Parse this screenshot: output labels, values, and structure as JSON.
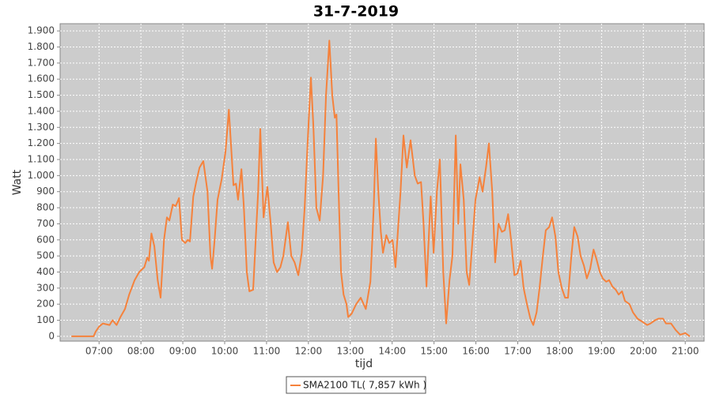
{
  "chart_data": {
    "type": "line",
    "title": "31-7-2019",
    "x_label": "tijd",
    "y_label": "Watt",
    "grid": true,
    "background": "#cccccc",
    "xlim": [
      6.07,
      21.45
    ],
    "ylim": [
      -30,
      1945
    ],
    "xticks": [
      {
        "value": 7,
        "label": "07:00"
      },
      {
        "value": 8,
        "label": "08:00"
      },
      {
        "value": 9,
        "label": "09:00"
      },
      {
        "value": 10,
        "label": "10:00"
      },
      {
        "value": 11,
        "label": "11:00"
      },
      {
        "value": 12,
        "label": "12:00"
      },
      {
        "value": 13,
        "label": "13:00"
      },
      {
        "value": 14,
        "label": "14:00"
      },
      {
        "value": 15,
        "label": "15:00"
      },
      {
        "value": 16,
        "label": "16:00"
      },
      {
        "value": 17,
        "label": "17:00"
      },
      {
        "value": 18,
        "label": "18:00"
      },
      {
        "value": 19,
        "label": "19:00"
      },
      {
        "value": 20,
        "label": "20:00"
      },
      {
        "value": 21,
        "label": "21:00"
      }
    ],
    "yticks": [
      0,
      100,
      200,
      300,
      400,
      500,
      600,
      700,
      800,
      900,
      {
        "value": 1000,
        "label": "1.000"
      },
      {
        "value": 1100,
        "label": "1.100"
      },
      {
        "value": 1200,
        "label": "1.200"
      },
      {
        "value": 1300,
        "label": "1.300"
      },
      {
        "value": 1400,
        "label": "1.400"
      },
      {
        "value": 1500,
        "label": "1.500"
      },
      {
        "value": 1600,
        "label": "1.600"
      },
      {
        "value": 1700,
        "label": "1.700"
      },
      {
        "value": 1800,
        "label": "1.800"
      },
      {
        "value": 1900,
        "label": "1.900"
      }
    ],
    "x": [
      6.34,
      6.87,
      6.92,
      7.0,
      7.09,
      7.25,
      7.32,
      7.42,
      7.51,
      7.62,
      7.72,
      7.85,
      7.96,
      8.08,
      8.15,
      8.19,
      8.25,
      8.32,
      8.4,
      8.47,
      8.55,
      8.62,
      8.68,
      8.76,
      8.83,
      8.91,
      8.98,
      9.06,
      9.12,
      9.17,
      9.25,
      9.32,
      9.4,
      9.49,
      9.59,
      9.66,
      9.7,
      9.76,
      9.83,
      9.93,
      10.02,
      10.1,
      10.15,
      10.21,
      10.27,
      10.32,
      10.4,
      10.46,
      10.53,
      10.59,
      10.68,
      10.8,
      10.85,
      10.93,
      11.02,
      11.1,
      11.17,
      11.25,
      11.33,
      11.4,
      11.51,
      11.59,
      11.67,
      11.76,
      11.84,
      11.91,
      11.99,
      12.06,
      12.12,
      12.19,
      12.27,
      12.35,
      12.42,
      12.5,
      12.57,
      12.63,
      12.67,
      12.72,
      12.78,
      12.84,
      12.91,
      12.95,
      13.03,
      13.14,
      13.25,
      13.37,
      13.48,
      13.56,
      13.61,
      13.67,
      13.73,
      13.78,
      13.86,
      13.93,
      14.01,
      14.08,
      14.2,
      14.27,
      14.35,
      14.44,
      14.54,
      14.61,
      14.69,
      14.75,
      14.82,
      14.92,
      14.99,
      15.07,
      15.14,
      15.22,
      15.29,
      15.37,
      15.44,
      15.52,
      15.58,
      15.63,
      15.71,
      15.78,
      15.84,
      15.92,
      15.99,
      16.09,
      16.16,
      16.24,
      16.31,
      16.39,
      16.46,
      16.54,
      16.62,
      16.69,
      16.77,
      16.84,
      16.92,
      16.99,
      17.07,
      17.14,
      17.22,
      17.3,
      17.37,
      17.45,
      17.52,
      17.6,
      17.67,
      17.75,
      17.82,
      17.9,
      17.97,
      18.05,
      18.13,
      18.2,
      18.28,
      18.35,
      18.43,
      18.5,
      18.58,
      18.65,
      18.73,
      18.81,
      18.88,
      18.96,
      19.03,
      19.11,
      19.18,
      19.26,
      19.34,
      19.41,
      19.49,
      19.56,
      19.67,
      19.75,
      19.86,
      19.98,
      20.09,
      20.17,
      20.28,
      20.36,
      20.47,
      20.54,
      20.66,
      20.77,
      20.88,
      21.0,
      21.11
    ],
    "series": [
      {
        "name": "SMA2100 TL( 7,857 kWh )",
        "color": "#f5823c",
        "values": [
          0,
          0,
          30,
          60,
          80,
          70,
          100,
          70,
          120,
          170,
          260,
          350,
          400,
          430,
          490,
          470,
          640,
          560,
          350,
          240,
          600,
          740,
          720,
          820,
          810,
          860,
          600,
          580,
          600,
          590,
          870,
          960,
          1050,
          1090,
          900,
          500,
          420,
          600,
          850,
          980,
          1150,
          1410,
          1200,
          940,
          950,
          850,
          1040,
          800,
          400,
          280,
          290,
          900,
          1290,
          740,
          930,
          700,
          460,
          400,
          430,
          500,
          710,
          500,
          460,
          380,
          520,
          800,
          1250,
          1610,
          1300,
          800,
          720,
          1000,
          1500,
          1840,
          1500,
          1360,
          1380,
          900,
          400,
          260,
          200,
          120,
          140,
          200,
          240,
          170,
          340,
          800,
          1230,
          900,
          650,
          520,
          630,
          580,
          600,
          430,
          900,
          1250,
          1050,
          1220,
          1000,
          950,
          960,
          700,
          310,
          870,
          520,
          900,
          1100,
          400,
          80,
          350,
          500,
          1250,
          700,
          1070,
          850,
          400,
          320,
          600,
          850,
          990,
          900,
          1050,
          1200,
          900,
          460,
          700,
          650,
          660,
          760,
          600,
          380,
          390,
          470,
          300,
          200,
          110,
          70,
          150,
          300,
          500,
          660,
          680,
          740,
          620,
          400,
          300,
          240,
          240,
          500,
          680,
          620,
          500,
          440,
          360,
          420,
          540,
          480,
          400,
          360,
          340,
          350,
          310,
          290,
          260,
          280,
          220,
          200,
          150,
          110,
          90,
          70,
          80,
          100,
          110,
          110,
          80,
          80,
          40,
          10,
          20,
          0
        ]
      }
    ]
  }
}
